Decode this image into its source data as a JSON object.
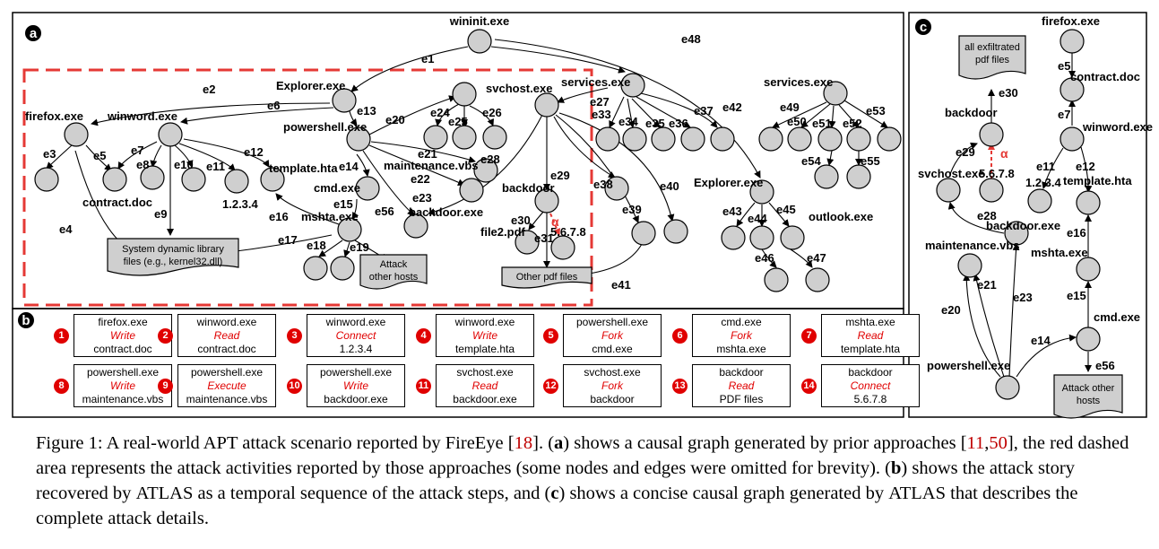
{
  "panels": {
    "a": "a",
    "b": "b",
    "c": "c"
  },
  "graph_a": {
    "nodes": {
      "wininit": "wininit.exe",
      "explorer1": "Explorer.exe",
      "firefox": "firefox.exe",
      "winword": "winword.exe",
      "powershell": "powershell.exe",
      "svchost": "svchost.exe",
      "services1": "services.exe",
      "services2": "services.exe",
      "contract": "contract.doc",
      "ip1": "1.2.3.4",
      "template": "template.hta",
      "cmd": "cmd.exe",
      "mshta": "mshta.exe",
      "maintenance": "maintenance.vbs",
      "backdoorexe": "backdoor.exe",
      "backdoor": "backdoor",
      "file2": "file2.pdf",
      "ip2": "5.6.7.8",
      "explorer2": "Explorer.exe",
      "outlook": "outlook.exe"
    },
    "sysdll": [
      "System dynamic library",
      "files (e.g., kernel32.dll)"
    ],
    "attack": [
      "Attack",
      "other hosts"
    ],
    "otherpdf": "Other pdf files",
    "alpha": "α",
    "edges": {
      "e1": "e1",
      "e2": "e2",
      "e3": "e3",
      "e4": "e4",
      "e5": "e5",
      "e6": "e6",
      "e7": "e7",
      "e8": "e8",
      "e9": "e9",
      "e10": "e10",
      "e11": "e11",
      "e12": "e12",
      "e13": "e13",
      "e14": "e14",
      "e15": "e15",
      "e16": "e16",
      "e17": "e17",
      "e18": "e18",
      "e19": "e19",
      "e20": "e20",
      "e21": "e21",
      "e22": "e22",
      "e23": "e23",
      "e24": "e24",
      "e25": "e25",
      "e26": "e26",
      "e27": "e27",
      "e28": "e28",
      "e29": "e29",
      "e30": "e30",
      "e31": "e31",
      "e33": "e33",
      "e34": "e34",
      "e35": "e35",
      "e36": "e36",
      "e37": "e37",
      "e38": "e38",
      "e39": "e39",
      "e40": "e40",
      "e41": "e41",
      "e42": "e42",
      "e43": "e43",
      "e44": "e44",
      "e45": "e45",
      "e46": "e46",
      "e47": "e47",
      "e48": "e48",
      "e49": "e49",
      "e50": "e50",
      "e51": "e51",
      "e52": "e52",
      "e53": "e53",
      "e54": "e54",
      "e55": "e55",
      "e56": "e56"
    }
  },
  "steps": [
    {
      "n": "1",
      "subject": "firefox.exe",
      "op": "Write",
      "object": "contract.doc"
    },
    {
      "n": "2",
      "subject": "winword.exe",
      "op": "Read",
      "object": "contract.doc"
    },
    {
      "n": "3",
      "subject": "winword.exe",
      "op": "Connect",
      "object": "1.2.3.4"
    },
    {
      "n": "4",
      "subject": "winword.exe",
      "op": "Write",
      "object": "template.hta"
    },
    {
      "n": "5",
      "subject": "powershell.exe",
      "op": "Fork",
      "object": "cmd.exe"
    },
    {
      "n": "6",
      "subject": "cmd.exe",
      "op": "Fork",
      "object": "mshta.exe"
    },
    {
      "n": "7",
      "subject": "mshta.exe",
      "op": "Read",
      "object": "template.hta"
    },
    {
      "n": "8",
      "subject": "powershell.exe",
      "op": "Write",
      "object": "maintenance.vbs"
    },
    {
      "n": "9",
      "subject": "powershell.exe",
      "op": "Execute",
      "object": "maintenance.vbs"
    },
    {
      "n": "10",
      "subject": "powershell.exe",
      "op": "Write",
      "object": "backdoor.exe"
    },
    {
      "n": "11",
      "subject": "svchost.exe",
      "op": "Read",
      "object": "backdoor.exe"
    },
    {
      "n": "12",
      "subject": "svchost.exe",
      "op": "Fork",
      "object": "backdoor"
    },
    {
      "n": "13",
      "subject": "backdoor",
      "op": "Read",
      "object": "PDF files"
    },
    {
      "n": "14",
      "subject": "backdoor",
      "op": "Connect",
      "object": "5.6.7.8"
    }
  ],
  "graph_c": {
    "nodes": {
      "firefox": "firefox.exe",
      "contract": "contract.doc",
      "winword": "winword.exe",
      "ip1": "1.2.3.4",
      "template": "template.hta",
      "mshta": "mshta.exe",
      "cmd": "cmd.exe",
      "powershell": "powershell.exe",
      "maintenance": "maintenance.vbs",
      "backdoorexe": "backdoor.exe",
      "svchost": "svchost.exe",
      "ip2": "5.6.7.8",
      "backdoor": "backdoor"
    },
    "exfil": [
      "all exfiltrated",
      "pdf files"
    ],
    "attack": [
      "Attack other",
      "hosts"
    ],
    "alpha": "α",
    "edges": {
      "e5": "e5",
      "e7": "e7",
      "e11": "e11",
      "e12": "e12",
      "e14": "e14",
      "e15": "e15",
      "e16": "e16",
      "e20": "e20",
      "e21": "e21",
      "e23": "e23",
      "e28": "e28",
      "e29": "e29",
      "e30": "e30",
      "e56": "e56"
    }
  },
  "caption": {
    "fig": "Figure 1:",
    "p1": " A real-world APT attack scenario reported by FireEye [",
    "r18": "18",
    "p2": "]. (",
    "a": "a",
    "p3": ") shows a causal graph generated by prior approaches [",
    "r11": "11",
    "comma": ",",
    "r50": "50",
    "p4": "], the red dashed area represents the attack activities reported by those approaches (some nodes and edges were omitted for brevity). (",
    "b": "b",
    "p5": ") shows the attack story recovered by ",
    "atlas1": "ATLAS",
    "p6": " as a temporal sequence of the attack steps, and (",
    "c": "c",
    "p7": ") shows a concise causal graph generated by ",
    "atlas2": "ATLAS",
    "p8": " that describes the complete attack details."
  },
  "colors": {
    "node": "#cfcfcf",
    "accent": "#e00000",
    "dash": "#e53935"
  }
}
